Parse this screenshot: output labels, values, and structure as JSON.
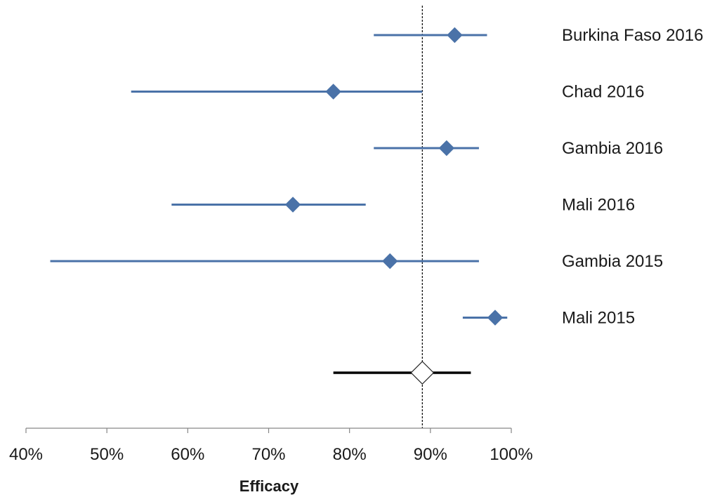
{
  "chart_data": {
    "type": "forest",
    "xlabel": "Efficacy",
    "xlim": [
      0.4,
      1.0
    ],
    "x_ticks": [
      "40%",
      "50%",
      "60%",
      "70%",
      "80%",
      "90%",
      "100%"
    ],
    "x_tick_values": [
      0.4,
      0.5,
      0.6,
      0.7,
      0.8,
      0.9,
      1.0
    ],
    "reference_line": 0.89,
    "grid": false,
    "series": [
      {
        "label": "Burkina Faso 2016",
        "point": 0.93,
        "lower": 0.83,
        "upper": 0.97
      },
      {
        "label": "Chad 2016",
        "point": 0.78,
        "lower": 0.53,
        "upper": 0.89
      },
      {
        "label": "Gambia 2016",
        "point": 0.92,
        "lower": 0.83,
        "upper": 0.96
      },
      {
        "label": "Mali 2016",
        "point": 0.73,
        "lower": 0.58,
        "upper": 0.82
      },
      {
        "label": "Gambia 2015",
        "point": 0.85,
        "lower": 0.43,
        "upper": 0.96
      },
      {
        "label": "Mali 2015",
        "point": 0.98,
        "lower": 0.94,
        "upper": 0.995
      }
    ],
    "summary": {
      "label": "",
      "point": 0.89,
      "lower": 0.78,
      "upper": 0.95
    },
    "colors": {
      "study": "#4A72A8",
      "summary_line": "#000000",
      "summary_fill": "#ffffff",
      "reference": "#000000"
    }
  }
}
